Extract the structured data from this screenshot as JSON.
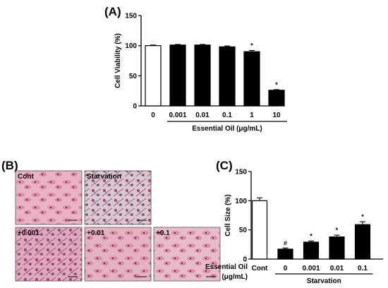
{
  "panels": {
    "a": "(A)",
    "b": "(B)",
    "c": "(C)"
  },
  "micrographs": [
    {
      "label": "Cont",
      "tint": "#e8b4c4"
    },
    {
      "label": "Starvation",
      "tint": "#d9c8d0"
    },
    {
      "label": "+0.001",
      "tint": "#e0a8bc"
    },
    {
      "label": "+0.01",
      "tint": "#e3b3c3"
    },
    {
      "label": "+0.1",
      "tint": "#e6bcc9"
    }
  ],
  "chart_data": [
    {
      "type": "bar",
      "panel": "A",
      "categories": [
        "0",
        "0.001",
        "0.01",
        "0.1",
        "1",
        "10"
      ],
      "values": [
        100,
        101,
        101,
        98,
        90,
        26
      ],
      "errors": [
        1,
        1,
        1,
        1.5,
        2,
        1
      ],
      "fills": [
        "#ffffff",
        "#000000",
        "#000000",
        "#000000",
        "#000000",
        "#000000"
      ],
      "annotations": [
        "",
        "",
        "",
        "",
        "*",
        "*"
      ],
      "ylabel": "Cell Viability (%)",
      "xlabel": "Essential Oil (μg/mL)",
      "ylim": [
        0,
        150
      ],
      "yticks": [
        0,
        50,
        100,
        150
      ]
    },
    {
      "type": "bar",
      "panel": "C",
      "categories": [
        "Cont",
        "0",
        "0.001",
        "0.01",
        "0.1"
      ],
      "values": [
        100,
        17,
        29,
        38,
        59
      ],
      "errors": [
        5,
        2,
        2,
        3,
        5
      ],
      "fills": [
        "#ffffff",
        "#000000",
        "#000000",
        "#000000",
        "#000000"
      ],
      "annotations": [
        "",
        "#",
        "*",
        "*",
        "*"
      ],
      "ylabel": "Cell Size (%)",
      "xlabel": "Starvation",
      "row_label": [
        "Essential Oil",
        "(μg/mL)"
      ],
      "ylim": [
        0,
        150
      ],
      "yticks": [
        0,
        50,
        100,
        150
      ]
    }
  ]
}
